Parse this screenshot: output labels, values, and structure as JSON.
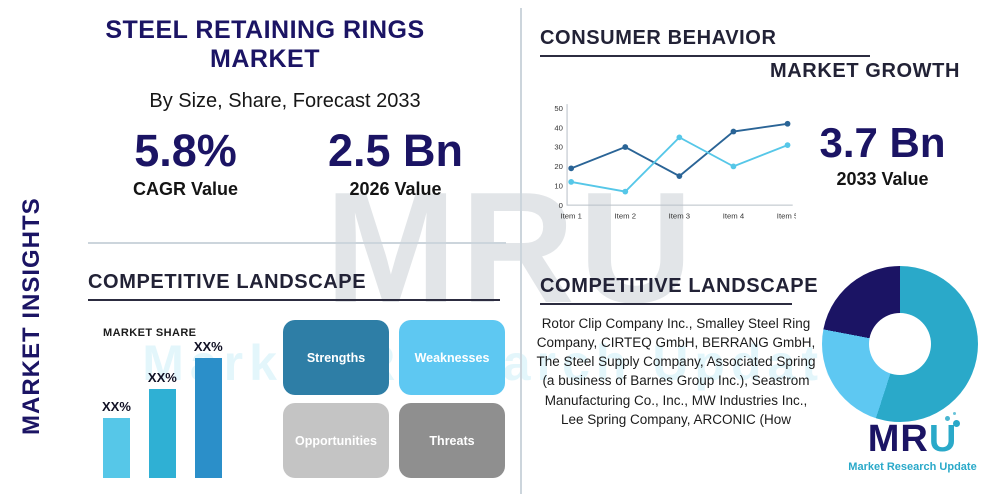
{
  "watermark": {
    "big": "MRU",
    "strip": "Market Research Update"
  },
  "sidebar": {
    "vertical_label": "MARKET INSIGHTS"
  },
  "header": {
    "title": "STEEL RETAINING RINGS MARKET",
    "subtitle": "By Size, Share, Forecast 2033"
  },
  "stats": {
    "cagr_value": "5.8%",
    "cagr_label": "CAGR Value",
    "v2026_value": "2.5 Bn",
    "v2026_label": "2026 Value",
    "v2033_value": "3.7 Bn",
    "v2033_label": "2033 Value"
  },
  "sections": {
    "consumer_behavior": "CONSUMER BEHAVIOR",
    "market_growth": "MARKET GROWTH",
    "competitive_landscape_left": "COMPETITIVE LANDSCAPE",
    "competitive_landscape_right": "COMPETITIVE LANDSCAPE"
  },
  "swot": {
    "strengths": {
      "label": "Strengths",
      "color": "#2e7ea6"
    },
    "weaknesses": {
      "label": "Weaknesses",
      "color": "#5ec8f2"
    },
    "opportunities": {
      "label": "Opportunities",
      "color": "#c4c4c4"
    },
    "threats": {
      "label": "Threats",
      "color": "#8f8f8f"
    }
  },
  "companies": "Rotor Clip Company Inc., Smalley Steel Ring Company, CIRTEQ GmbH, BERRANG GmbH, The Steel Supply Company, Associated Spring (a business of Barnes Group Inc.), Seastrom Manufacturing Co., Inc., MW Industries Inc., Lee Spring Company, ARCONIC (How",
  "logo": {
    "m": "M",
    "r": "R",
    "u": "U",
    "subtext": "Market Research Update"
  },
  "colors": {
    "navy": "#1b1464",
    "teal": "#2aa9c9",
    "light_blue": "#5ec8f2",
    "dark": "#222236"
  },
  "chart_data": [
    {
      "type": "line",
      "name": "market-growth-line-chart",
      "title": "CONSUMER BEHAVIOR / MARKET GROWTH",
      "x": [
        "Item 1",
        "Item 2",
        "Item 3",
        "Item 4",
        "Item 5"
      ],
      "xlabel": "",
      "ylabel": "",
      "ylim": [
        0,
        50
      ],
      "yticks": [
        0,
        10,
        20,
        30,
        40,
        50
      ],
      "grid": false,
      "legend": "none",
      "series": [
        {
          "name": "series-dark-blue",
          "color": "#2a6496",
          "values": [
            19,
            30,
            15,
            38,
            42
          ]
        },
        {
          "name": "series-light-blue",
          "color": "#56c7e8",
          "values": [
            12,
            7,
            35,
            20,
            31
          ]
        }
      ]
    },
    {
      "type": "bar",
      "name": "market-share-bar-chart",
      "title": "MARKET SHARE",
      "labels": [
        "XX%",
        "XX%",
        "XX%"
      ],
      "values": [
        25,
        37,
        50
      ],
      "ylim": [
        0,
        50
      ],
      "bar_colors": [
        "#56c7e8",
        "#2fb0d4",
        "#2b8fc9"
      ]
    },
    {
      "type": "pie",
      "name": "competitive-landscape-donut",
      "donut": true,
      "slices": [
        {
          "name": "teal-slice",
          "color": "#2aa9c9",
          "value": 55
        },
        {
          "name": "light-blue-slice",
          "color": "#5ec8f2",
          "value": 23
        },
        {
          "name": "navy-slice",
          "color": "#1b1464",
          "value": 22
        }
      ]
    }
  ]
}
